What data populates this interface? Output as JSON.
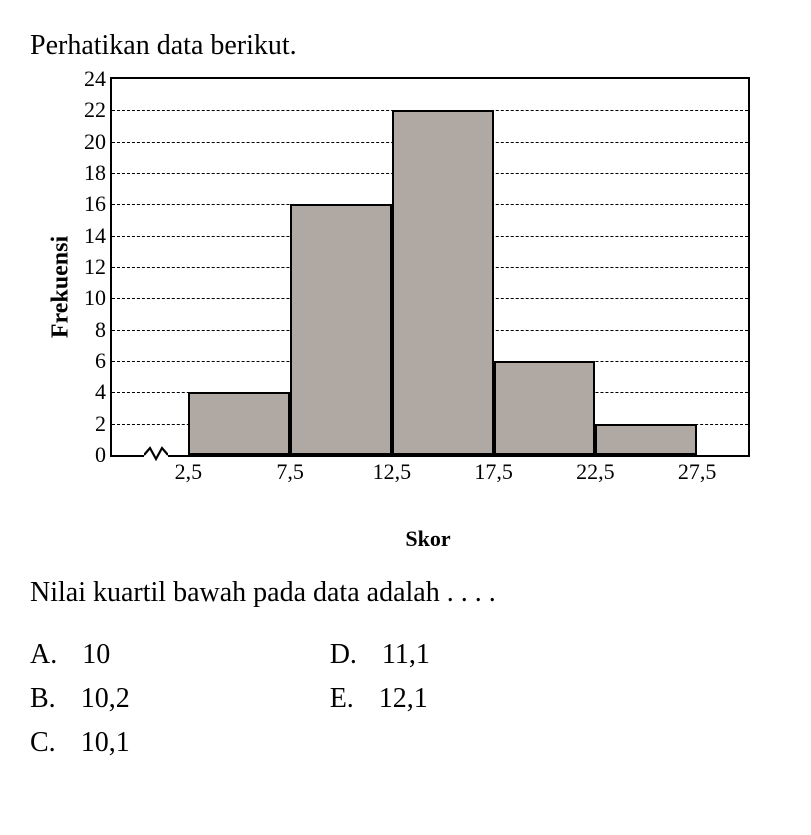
{
  "title": "Perhatikan data berikut.",
  "chart": {
    "type": "bar",
    "ylabel": "Frekuensi",
    "xlabel": "Skor",
    "ymax": 24,
    "ymin": 0,
    "ytick_step": 2,
    "yticks": [
      0,
      2,
      4,
      6,
      8,
      10,
      12,
      14,
      16,
      18,
      20,
      22,
      24
    ],
    "xticks": [
      "2,5",
      "7,5",
      "12,5",
      "17,5",
      "22,5",
      "27,5"
    ],
    "values": [
      4,
      16,
      22,
      6,
      2
    ],
    "bar_fill": "#b0a9a3",
    "bar_border": "#000000",
    "grid_color": "#000000",
    "background_color": "#ffffff",
    "left_gap_pct": 12,
    "bar_width_pct": 16,
    "break_left_pct": 5
  },
  "question": "Nilai kuartil bawah pada data adalah . . . .",
  "options": {
    "left": [
      {
        "letter": "A.",
        "text": "10"
      },
      {
        "letter": "B.",
        "text": "10,2"
      },
      {
        "letter": "C.",
        "text": "10,1"
      }
    ],
    "right": [
      {
        "letter": "D.",
        "text": "11,1"
      },
      {
        "letter": "E.",
        "text": "12,1"
      }
    ]
  }
}
